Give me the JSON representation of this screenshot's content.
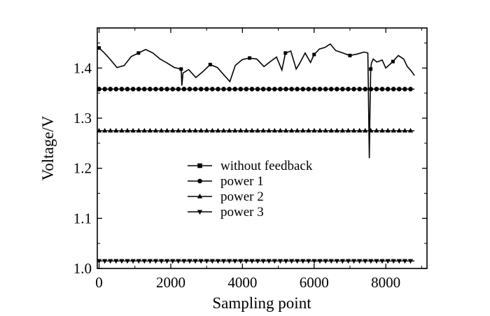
{
  "chart_data": {
    "type": "line",
    "xlabel": "Sampling point",
    "ylabel": "Voltage/V",
    "xlim": [
      -50,
      9150
    ],
    "ylim": [
      1.0,
      1.48
    ],
    "x_ticks": [
      0,
      2000,
      4000,
      6000,
      8000
    ],
    "x_tick_labels": [
      "0",
      "2000",
      "4000",
      "6000",
      "8000"
    ],
    "y_ticks": [
      1.0,
      1.1,
      1.2,
      1.3,
      1.4
    ],
    "y_tick_labels": [
      "1.0",
      "1.1",
      "1.2",
      "1.3",
      "1.4"
    ],
    "grid": false,
    "legend_position": "center",
    "series": [
      {
        "name": "without feedback",
        "marker": "square",
        "x": [
          0,
          150,
          300,
          500,
          700,
          900,
          1100,
          1300,
          1500,
          1700,
          1900,
          2100,
          2290,
          2310,
          2340,
          2500,
          2700,
          2900,
          3100,
          3300,
          3500,
          3650,
          3800,
          4000,
          4200,
          4400,
          4600,
          4800,
          4950,
          5100,
          5200,
          5350,
          5500,
          5600,
          5750,
          5900,
          6000,
          6150,
          6300,
          6450,
          6600,
          6800,
          7000,
          7200,
          7400,
          7500,
          7540,
          7560,
          7580,
          7600,
          7650,
          7750,
          7900,
          8000,
          8200,
          8350,
          8500,
          8600,
          8700,
          8800
        ],
        "y": [
          1.44,
          1.43,
          1.418,
          1.401,
          1.405,
          1.423,
          1.43,
          1.437,
          1.43,
          1.418,
          1.41,
          1.401,
          1.398,
          1.365,
          1.39,
          1.397,
          1.381,
          1.393,
          1.407,
          1.401,
          1.385,
          1.373,
          1.405,
          1.417,
          1.42,
          1.418,
          1.403,
          1.414,
          1.422,
          1.396,
          1.43,
          1.434,
          1.398,
          1.41,
          1.43,
          1.411,
          1.427,
          1.438,
          1.441,
          1.448,
          1.435,
          1.43,
          1.425,
          1.428,
          1.432,
          1.43,
          1.22,
          1.32,
          1.398,
          1.41,
          1.418,
          1.412,
          1.416,
          1.4,
          1.413,
          1.425,
          1.418,
          1.403,
          1.395,
          1.385
        ]
      },
      {
        "name": "power 1",
        "marker": "circle",
        "x": [
          0,
          8800
        ],
        "y": [
          1.358,
          1.358
        ]
      },
      {
        "name": "power 2",
        "marker": "triangle-up",
        "x": [
          0,
          8800
        ],
        "y": [
          1.275,
          1.275
        ]
      },
      {
        "name": "power 3",
        "marker": "triangle-down",
        "x": [
          0,
          8800
        ],
        "y": [
          1.015,
          1.015
        ]
      }
    ]
  }
}
